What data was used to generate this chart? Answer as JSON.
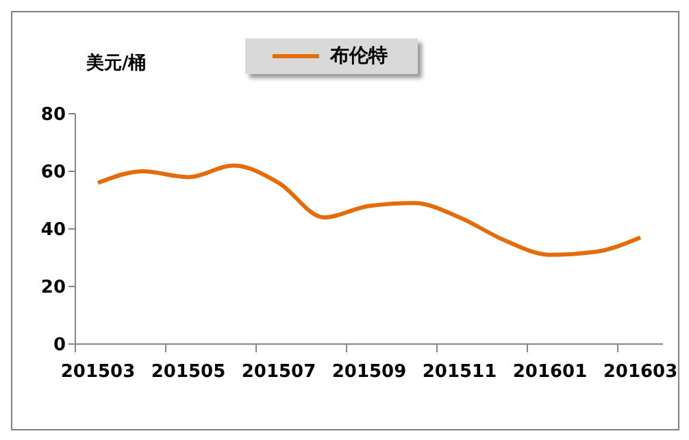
{
  "chart_data": {
    "type": "line",
    "ylabel": "美元/桶",
    "categories": [
      "201503",
      null,
      "201505",
      null,
      "201507",
      null,
      "201509",
      null,
      "201511",
      null,
      "201601",
      null,
      "201603"
    ],
    "series": [
      {
        "name": "布伦特",
        "color": "#e46c0a",
        "values": [
          56,
          60,
          58,
          62,
          56,
          44,
          48,
          49,
          44,
          36,
          31,
          32,
          37
        ]
      }
    ],
    "ylim": [
      0,
      80
    ],
    "yticks": [
      0,
      20,
      40,
      60,
      80
    ],
    "grid": false,
    "legend": "top",
    "marker": "none",
    "line_style": "solid"
  }
}
